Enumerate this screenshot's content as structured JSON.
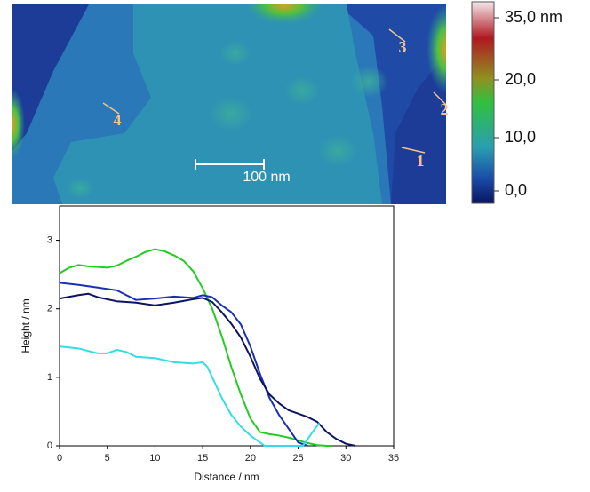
{
  "image": {
    "profile_labels": [
      "1",
      "2",
      "3",
      "4"
    ],
    "scale_bar": "100 nm",
    "colorbar_labels": [
      "35,0 nm",
      "20,0",
      "10,0",
      "0,0"
    ]
  },
  "chart_data": {
    "type": "line",
    "xlabel": "Distance / nm",
    "ylabel": "Height / nm",
    "xlim": [
      0,
      35
    ],
    "xticks": [
      0,
      5,
      10,
      15,
      20,
      25,
      30,
      35
    ],
    "ylim": [
      0,
      3.5
    ],
    "yticks": [
      0,
      1,
      2,
      3
    ],
    "series": [
      {
        "color": "#22cc22",
        "x": [
          0,
          1,
          2,
          3,
          5,
          6,
          7,
          8,
          9,
          10,
          11,
          12,
          13,
          14,
          15,
          16,
          17,
          18,
          19,
          20,
          21,
          22,
          23,
          24,
          25,
          26,
          27,
          28,
          28.5
        ],
        "values": [
          2.52,
          2.6,
          2.64,
          2.62,
          2.6,
          2.63,
          2.7,
          2.76,
          2.83,
          2.87,
          2.84,
          2.78,
          2.7,
          2.55,
          2.3,
          2.0,
          1.6,
          1.15,
          0.75,
          0.4,
          0.2,
          0.17,
          0.15,
          0.12,
          0.08,
          0.04,
          0.01,
          0,
          0
        ]
      },
      {
        "color": "#1a2fb8",
        "x": [
          0,
          2,
          4,
          6,
          7,
          8,
          10,
          12,
          14,
          15,
          16,
          17,
          18,
          19,
          20,
          21,
          22,
          23,
          24,
          25,
          26
        ],
        "values": [
          2.38,
          2.35,
          2.31,
          2.27,
          2.2,
          2.13,
          2.15,
          2.18,
          2.16,
          2.2,
          2.17,
          2.05,
          1.95,
          1.77,
          1.45,
          1.05,
          0.7,
          0.45,
          0.25,
          0.05,
          0
        ]
      },
      {
        "color": "#0c1460",
        "x": [
          0,
          2,
          3,
          4,
          6,
          8,
          10,
          12,
          14,
          15,
          16,
          17,
          18,
          19,
          20,
          21,
          22,
          23,
          24,
          25,
          26,
          27,
          28,
          29,
          30,
          31
        ],
        "values": [
          2.15,
          2.2,
          2.22,
          2.17,
          2.11,
          2.09,
          2.05,
          2.09,
          2.14,
          2.16,
          2.1,
          1.95,
          1.78,
          1.58,
          1.3,
          0.98,
          0.75,
          0.62,
          0.52,
          0.47,
          0.42,
          0.35,
          0.2,
          0.1,
          0.03,
          0
        ]
      },
      {
        "color": "#33dde8",
        "x": [
          0,
          2,
          4,
          5,
          6,
          7,
          8,
          10,
          12,
          14,
          15,
          15.5,
          16,
          17,
          18,
          19,
          20,
          21,
          21.5,
          22,
          25.5,
          26.5,
          27.2
        ],
        "values": [
          1.45,
          1.42,
          1.35,
          1.35,
          1.4,
          1.37,
          1.3,
          1.28,
          1.22,
          1.2,
          1.22,
          1.15,
          1.0,
          0.7,
          0.45,
          0.28,
          0.15,
          0.05,
          0,
          0,
          0,
          0.2,
          0.33
        ]
      }
    ]
  }
}
